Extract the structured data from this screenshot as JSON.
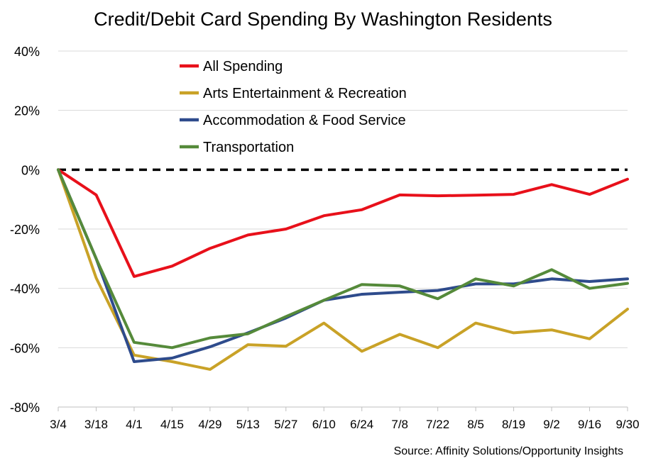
{
  "chart_data": {
    "type": "line",
    "title": "Credit/Debit Card Spending By Washington Residents",
    "source": "Source: Affinity Solutions/Opportunity Insights",
    "x": [
      "3/4",
      "3/18",
      "4/1",
      "4/15",
      "4/29",
      "5/13",
      "5/27",
      "6/10",
      "6/24",
      "7/8",
      "7/22",
      "8/5",
      "8/19",
      "9/2",
      "9/16",
      "9/30"
    ],
    "ylim": [
      -80,
      40
    ],
    "yticks": [
      -80,
      -60,
      -40,
      -20,
      0,
      20,
      40
    ],
    "ytick_labels": [
      "-80%",
      "-60%",
      "-40%",
      "-20%",
      "0%",
      "20%",
      "40%"
    ],
    "grid": true,
    "zero_line": "dashed",
    "legend_position": "top-left",
    "series": [
      {
        "name": "All Spending",
        "color": "#e8101a",
        "values": [
          0,
          -8.5,
          -36,
          -32.5,
          -26.5,
          -22,
          -20,
          -15.5,
          -13.5,
          -8.5,
          -8.8,
          -8.6,
          -8.3,
          -5,
          -8.3,
          -3.2
        ]
      },
      {
        "name": "Arts Entertainment & Recreation",
        "color": "#c9a227",
        "values": [
          0,
          -36.5,
          -62.5,
          -64.7,
          -67.3,
          -59,
          -59.5,
          -51.7,
          -61.2,
          -55.5,
          -60,
          -51.7,
          -55,
          -54,
          -57,
          -47
        ]
      },
      {
        "name": "Accommodation & Food Service",
        "color": "#2e4b8c",
        "values": [
          0,
          -30,
          -64.7,
          -63.5,
          -59.7,
          -55,
          -50,
          -44,
          -42,
          -41.3,
          -40.7,
          -38.5,
          -38.5,
          -36.8,
          -37.7,
          -36.8
        ]
      },
      {
        "name": "Transportation",
        "color": "#558a3a",
        "values": [
          0,
          -30,
          -58.2,
          -60,
          -56.7,
          -55.3,
          -49.5,
          -44,
          -38.7,
          -39.2,
          -43.5,
          -36.8,
          -39.2,
          -33.7,
          -40,
          -38.3
        ]
      }
    ]
  }
}
